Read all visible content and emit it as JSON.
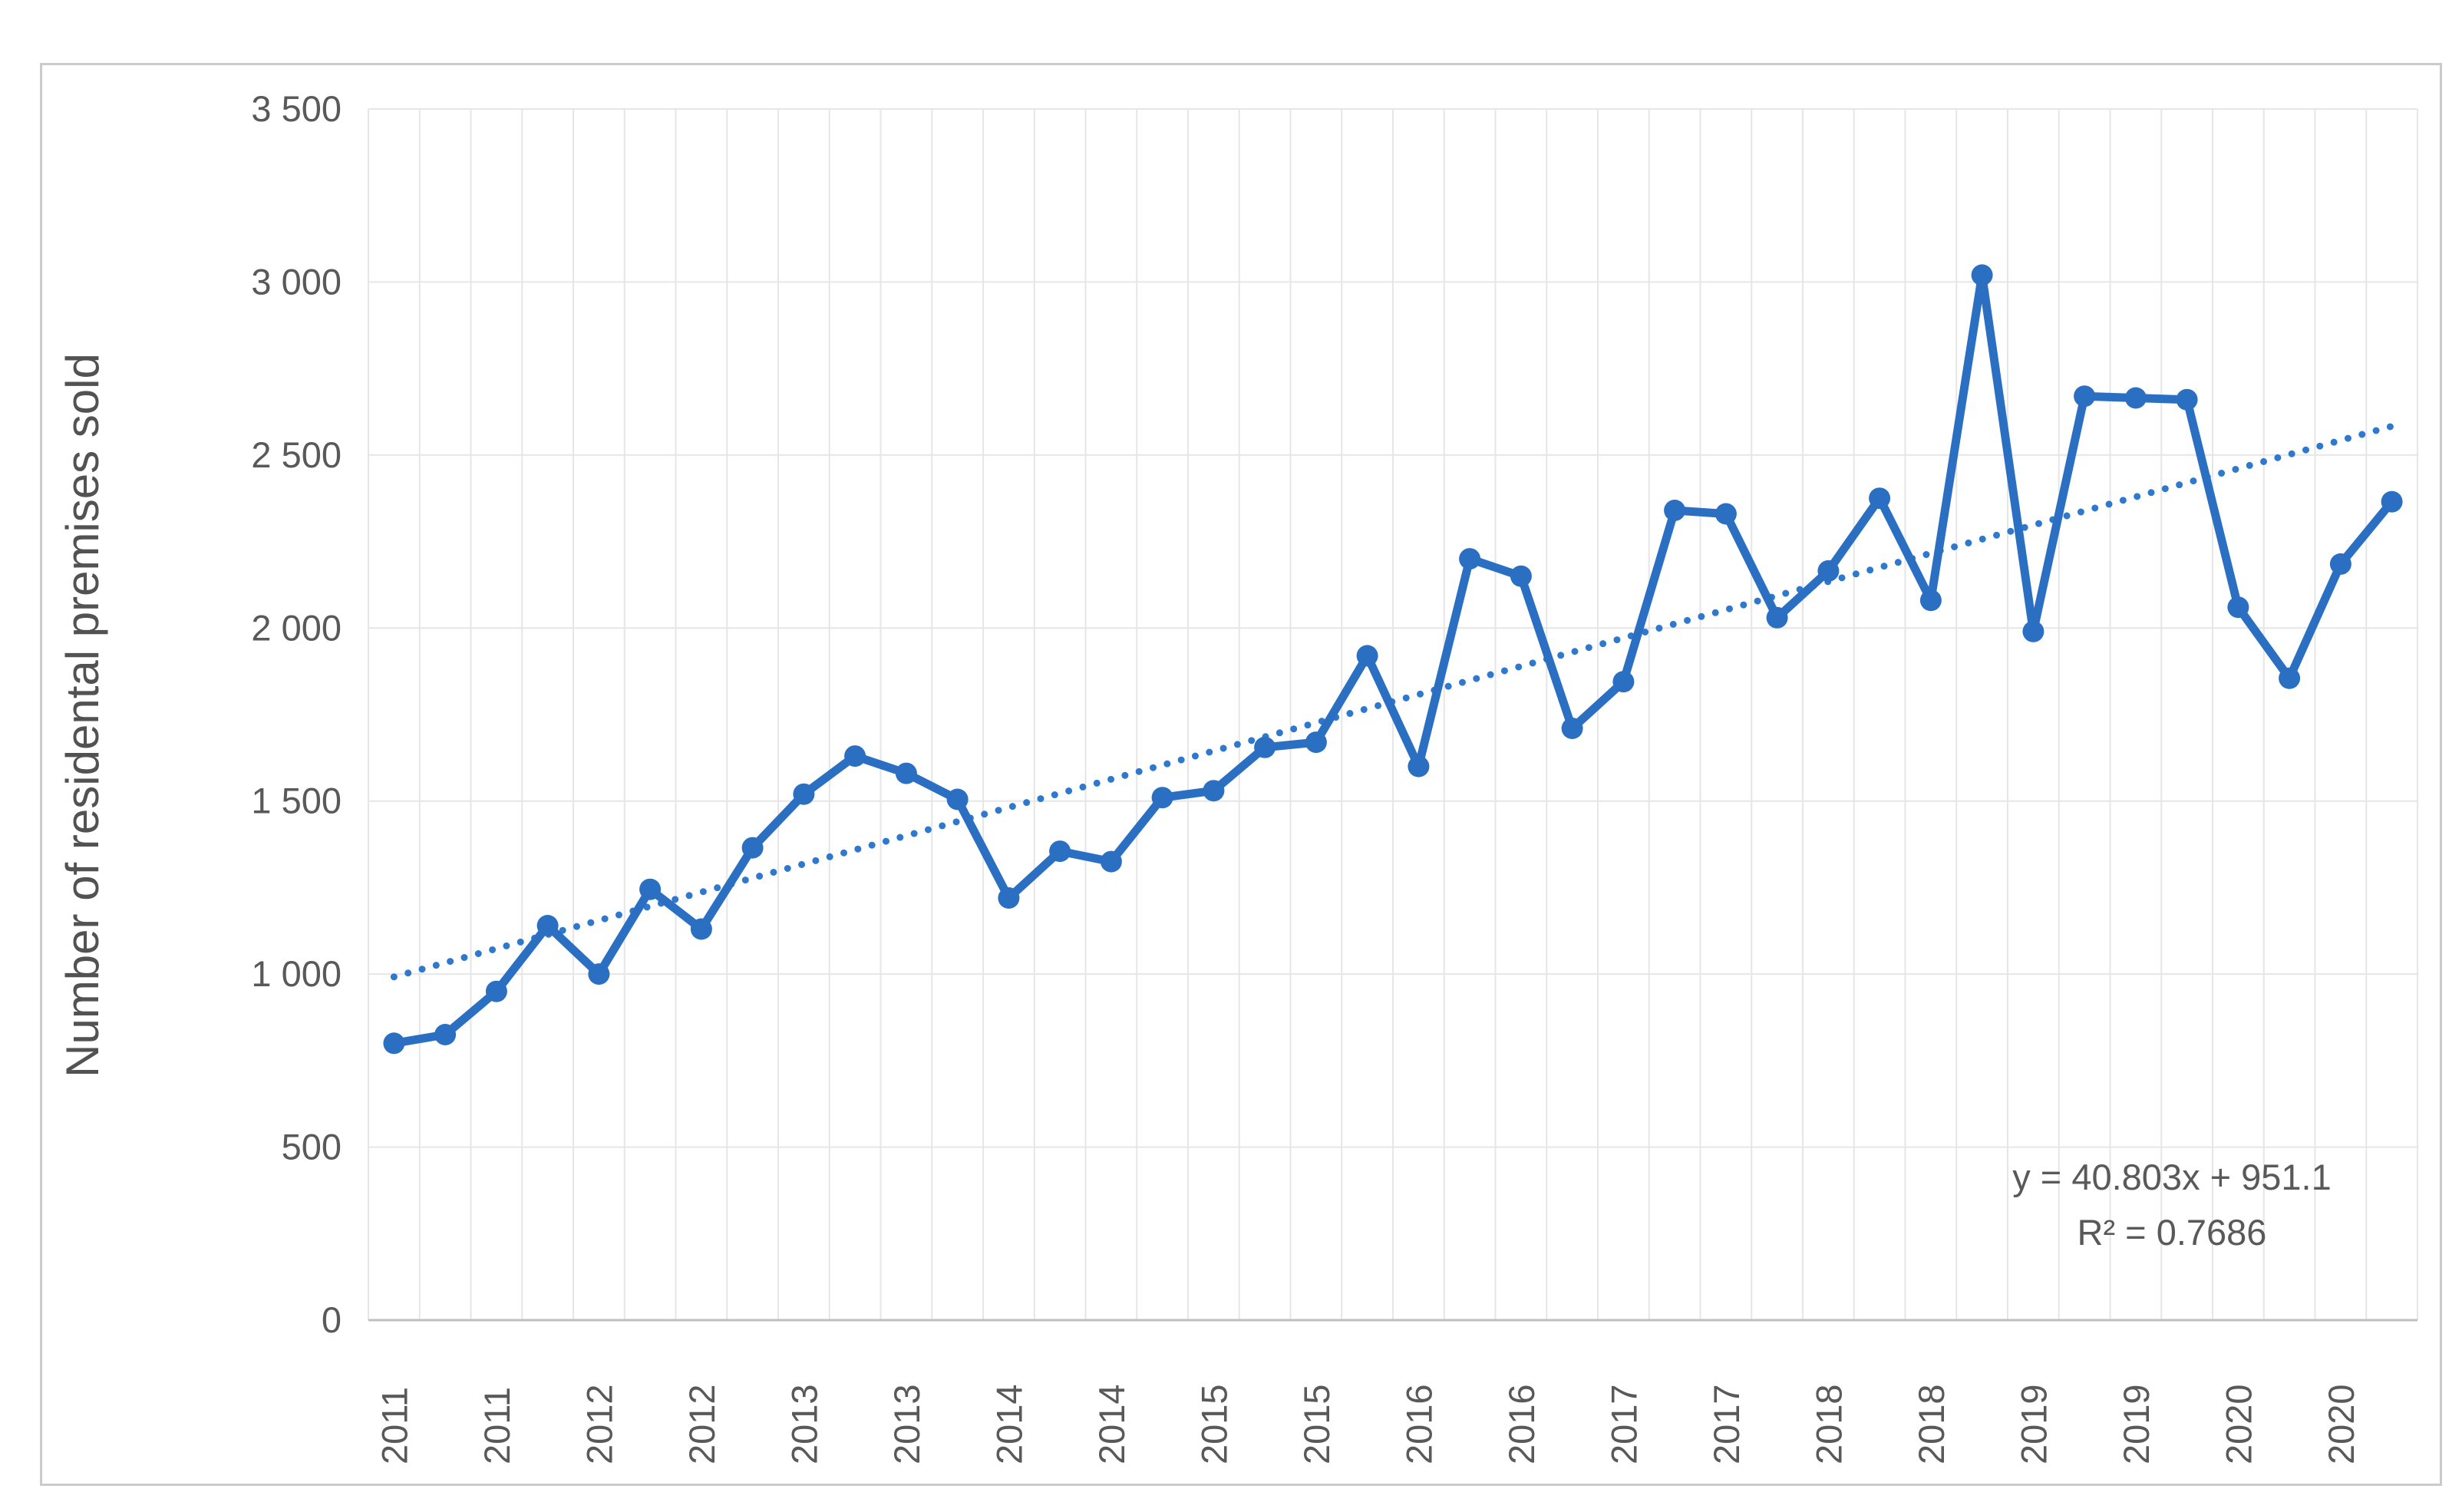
{
  "chart_data": {
    "type": "line",
    "title": "",
    "xlabel": "",
    "ylabel": "Number of residental premises sold",
    "ylim": [
      0,
      3500
    ],
    "ytick_labels": [
      "0",
      "500",
      "1 000",
      "1 500",
      "2 000",
      "2 500",
      "3 000",
      "3 500"
    ],
    "x_tick_labels": [
      "2011",
      "2011",
      "2012",
      "2012",
      "2013",
      "2013",
      "2014",
      "2014",
      "2015",
      "2015",
      "2016",
      "2016",
      "2017",
      "2017",
      "2018",
      "2018",
      "2019",
      "2019",
      "2020",
      "2020"
    ],
    "x_label_every_n_points": 2,
    "points_per_year": 4,
    "grid": true,
    "legend": "none",
    "series": [
      {
        "name": "Number of residental premises sold",
        "values": [
          800,
          825,
          950,
          1140,
          1000,
          1245,
          1130,
          1365,
          1520,
          1630,
          1580,
          1505,
          1220,
          1355,
          1325,
          1510,
          1530,
          1655,
          1670,
          1920,
          1600,
          2200,
          2150,
          1710,
          1845,
          2340,
          2330,
          2030,
          2165,
          2375,
          2080,
          3020,
          1990,
          2670,
          2665,
          2660,
          2060,
          1855,
          2185,
          2365
        ]
      }
    ],
    "trendline": {
      "equation": "y = 40.803x + 951.1",
      "r_squared_label": "R² = 0.7686",
      "slope": 40.803,
      "intercept": 951.1,
      "style": "dotted"
    },
    "colors": {
      "series": "#2a6fc2",
      "trendline": "#2e78ce",
      "gridline": "#e6e6e6",
      "axis_line": "#bfbfbf",
      "tick_text": "#595959",
      "title_text": "#525252",
      "equation_text": "#595959",
      "border": "#cbcbcb",
      "background": "#ffffff"
    }
  }
}
